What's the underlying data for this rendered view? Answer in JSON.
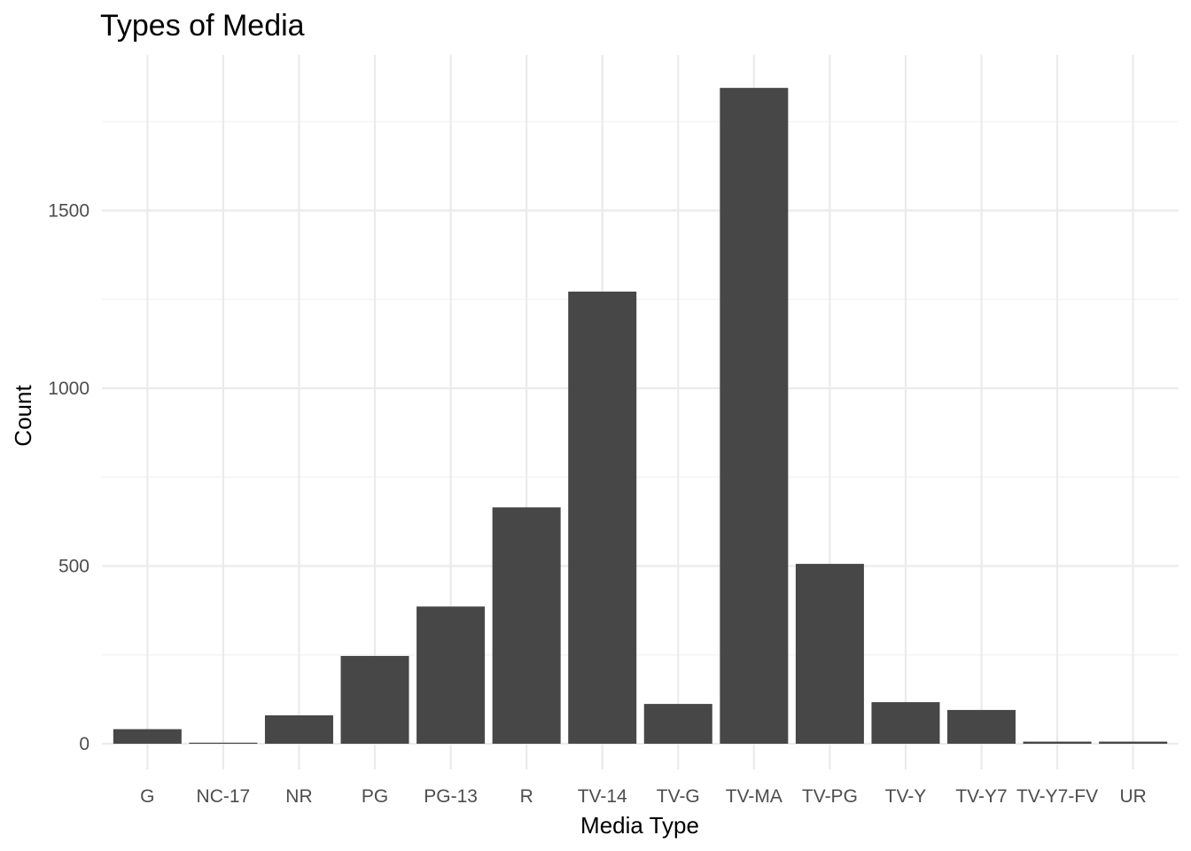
{
  "chart_data": {
    "type": "bar",
    "title": "Types of Media",
    "xlabel": "Media Type",
    "ylabel": "Count",
    "categories": [
      "G",
      "NC-17",
      "NR",
      "PG",
      "PG-13",
      "R",
      "TV-14",
      "TV-G",
      "TV-MA",
      "TV-PG",
      "TV-Y",
      "TV-Y7",
      "TV-Y7-FV",
      "UR"
    ],
    "values": [
      41,
      3,
      80,
      247,
      386,
      665,
      1272,
      112,
      1845,
      506,
      117,
      95,
      6,
      6
    ],
    "ylim": [
      0,
      1900
    ],
    "yticks": [
      0,
      500,
      1000,
      1500
    ],
    "bar_color": "#474747",
    "grid": true,
    "theme": "minimal"
  }
}
